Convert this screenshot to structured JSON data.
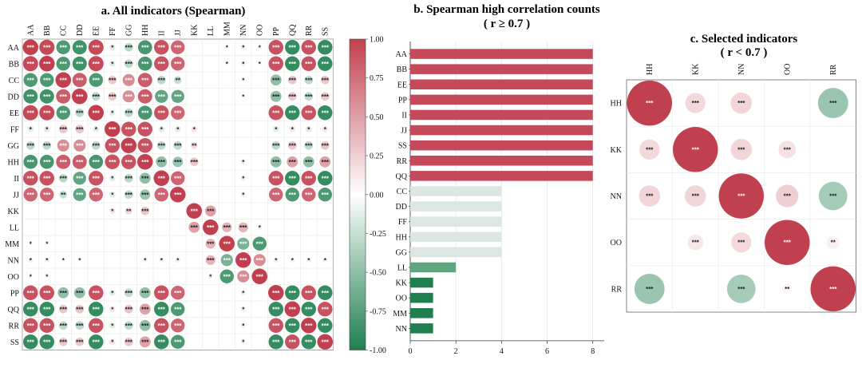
{
  "chart_data": [
    {
      "type": "heatmap",
      "title": "a. All indicators (Spearman)",
      "labels": [
        "AA",
        "BB",
        "CC",
        "DD",
        "EE",
        "FF",
        "GG",
        "HH",
        "II",
        "JJ",
        "KK",
        "LL",
        "MM",
        "NN",
        "OO",
        "PP",
        "QQ",
        "RR",
        "SS"
      ],
      "colorbar_ticks": [
        "1.00",
        "0.75",
        "0.50",
        "0.25",
        "0.00",
        "-0.25",
        "-0.50",
        "-0.75",
        "-1.00"
      ],
      "colorbar_range": [
        -1,
        1
      ],
      "colors": {
        "positive": "#c1404f",
        "negative": "#1f7f4f",
        "neutral": "#ffffff"
      },
      "matrix": [
        [
          1,
          0.95,
          -0.8,
          -0.85,
          0.95,
          -0.15,
          -0.3,
          -0.82,
          0.9,
          0.8,
          0,
          0,
          0.05,
          -0.1,
          0.05,
          0.9,
          -0.9,
          0.9,
          -0.9
        ],
        [
          0.95,
          1,
          -0.8,
          -0.85,
          0.95,
          -0.15,
          -0.3,
          -0.82,
          0.9,
          0.8,
          0,
          0,
          0.05,
          -0.1,
          0.05,
          0.9,
          -0.9,
          0.9,
          -0.9
        ],
        [
          -0.8,
          -0.8,
          1,
          0.85,
          -0.8,
          0.3,
          0.6,
          0.85,
          -0.3,
          -0.25,
          0,
          0,
          0,
          0.05,
          0,
          -0.5,
          0.3,
          -0.3,
          0.3
        ],
        [
          -0.85,
          -0.85,
          0.85,
          1,
          -0.3,
          0.3,
          0.6,
          0.85,
          -0.7,
          -0.7,
          0,
          0,
          0,
          0.05,
          0,
          -0.5,
          0.3,
          -0.3,
          0.3
        ],
        [
          0.95,
          0.95,
          -0.8,
          -0.3,
          1,
          -0.15,
          -0.3,
          -0.82,
          0.9,
          0.8,
          0,
          0,
          0,
          0,
          0,
          0.9,
          -0.9,
          0.9,
          -0.9
        ],
        [
          -0.15,
          -0.15,
          0.3,
          0.3,
          -0.15,
          1,
          0.9,
          0.9,
          -0.15,
          -0.15,
          0.15,
          0,
          0,
          0,
          0,
          -0.15,
          0.15,
          -0.15,
          0.15
        ],
        [
          -0.3,
          -0.3,
          0.6,
          0.6,
          -0.3,
          0.9,
          1,
          0.9,
          -0.3,
          -0.3,
          0.2,
          0,
          0,
          0,
          0,
          -0.3,
          0.3,
          -0.3,
          0.3
        ],
        [
          -0.82,
          -0.82,
          0.85,
          0.85,
          -0.82,
          0.9,
          0.9,
          1,
          -0.5,
          -0.45,
          0.3,
          0,
          0,
          0.1,
          0,
          -0.5,
          0.5,
          -0.5,
          0.5
        ],
        [
          0.9,
          0.9,
          -0.3,
          -0.7,
          0.9,
          -0.15,
          -0.3,
          -0.5,
          1,
          0.8,
          0,
          0,
          0,
          -0.1,
          0,
          0.9,
          -0.9,
          0.9,
          -0.9
        ],
        [
          0.8,
          0.8,
          -0.25,
          -0.7,
          0.8,
          -0.15,
          -0.3,
          -0.45,
          0.8,
          1,
          0,
          0,
          0,
          -0.1,
          0,
          0.8,
          -0.8,
          0.8,
          -0.8
        ],
        [
          0,
          0,
          0,
          0,
          0,
          0.15,
          0.2,
          0.3,
          0,
          0,
          1,
          0.5,
          0,
          0,
          0,
          0,
          0,
          0,
          0
        ],
        [
          0,
          0,
          0,
          0,
          0,
          0,
          0,
          0,
          0,
          0,
          0.5,
          1,
          0.4,
          0.4,
          0.1,
          0,
          0,
          0,
          0
        ],
        [
          0.05,
          0.05,
          0,
          0,
          0,
          0,
          0,
          0,
          0,
          0,
          0,
          0.4,
          1,
          -0.6,
          -0.8,
          0,
          0,
          0,
          0
        ],
        [
          -0.1,
          -0.1,
          0.05,
          0.05,
          0,
          0,
          0,
          0.1,
          -0.1,
          -0.1,
          0,
          0.4,
          -0.6,
          1,
          0.6,
          -0.1,
          0.1,
          -0.1,
          0.1
        ],
        [
          0.05,
          0.05,
          0,
          0,
          0,
          0,
          0,
          0,
          0,
          0,
          0,
          0.1,
          -0.8,
          0.6,
          1,
          0,
          0,
          0,
          0
        ],
        [
          0.9,
          0.9,
          -0.5,
          -0.5,
          0.9,
          -0.15,
          -0.3,
          -0.5,
          0.9,
          0.8,
          0,
          0,
          0,
          -0.1,
          0,
          1,
          -0.9,
          0.9,
          -0.9
        ],
        [
          -0.9,
          -0.9,
          0.3,
          0.3,
          -0.9,
          0.15,
          0.3,
          0.5,
          -0.9,
          -0.8,
          0,
          0,
          0,
          0.1,
          0,
          -0.9,
          1,
          -0.9,
          0.9
        ],
        [
          0.9,
          0.9,
          -0.3,
          -0.3,
          0.9,
          -0.15,
          -0.3,
          -0.5,
          0.9,
          0.8,
          0,
          0,
          0,
          -0.1,
          0,
          0.9,
          -0.9,
          1,
          -0.9
        ],
        [
          -0.9,
          -0.9,
          0.3,
          0.3,
          -0.9,
          0.15,
          0.3,
          0.5,
          -0.9,
          -0.8,
          0,
          0,
          0,
          0.1,
          0,
          -0.9,
          0.9,
          -0.9,
          1
        ]
      ]
    },
    {
      "type": "bar",
      "orientation": "horizontal",
      "title": "b. Spearman high correlation counts",
      "subtitle": "( r ≥ 0.7 )",
      "categories": [
        "AA",
        "BB",
        "EE",
        "PP",
        "II",
        "JJ",
        "SS",
        "RR",
        "QQ",
        "CC",
        "DD",
        "FF",
        "HH",
        "GG",
        "LL",
        "KK",
        "OO",
        "MM",
        "NN"
      ],
      "values": [
        8,
        8,
        8,
        8,
        8,
        8,
        8,
        8,
        8,
        4,
        4,
        4,
        4,
        4,
        2,
        1,
        1,
        1,
        1
      ],
      "xlim": [
        0,
        8.5
      ],
      "xticks": [
        0,
        2,
        4,
        6,
        8
      ],
      "grid": true,
      "colors": {
        "8": "#c4495a",
        "4": "#dbe7e0",
        "2": "#5fa67e",
        "1": "#1f7f4f"
      }
    },
    {
      "type": "heatmap",
      "title": "c. Selected indicators",
      "subtitle": "( r < 0.7 )",
      "labels": [
        "HH",
        "KK",
        "NN",
        "OO",
        "RR"
      ],
      "matrix": [
        [
          1,
          0.2,
          0.22,
          0,
          -0.45
        ],
        [
          0.2,
          1,
          0.22,
          0.15,
          0
        ],
        [
          0.22,
          0.22,
          1,
          0.25,
          -0.4
        ],
        [
          0,
          0.12,
          0.2,
          1,
          0.08
        ],
        [
          -0.45,
          0,
          -0.4,
          0.05,
          1
        ]
      ],
      "stars": [
        [
          "***",
          "***",
          "***",
          "",
          "***"
        ],
        [
          "***",
          "***",
          "***",
          "***",
          ""
        ],
        [
          "***",
          "***",
          "***",
          "***",
          "***"
        ],
        [
          "",
          "***",
          "***",
          "***",
          "**"
        ],
        [
          "***",
          "",
          "***",
          "**",
          "***"
        ]
      ]
    }
  ]
}
